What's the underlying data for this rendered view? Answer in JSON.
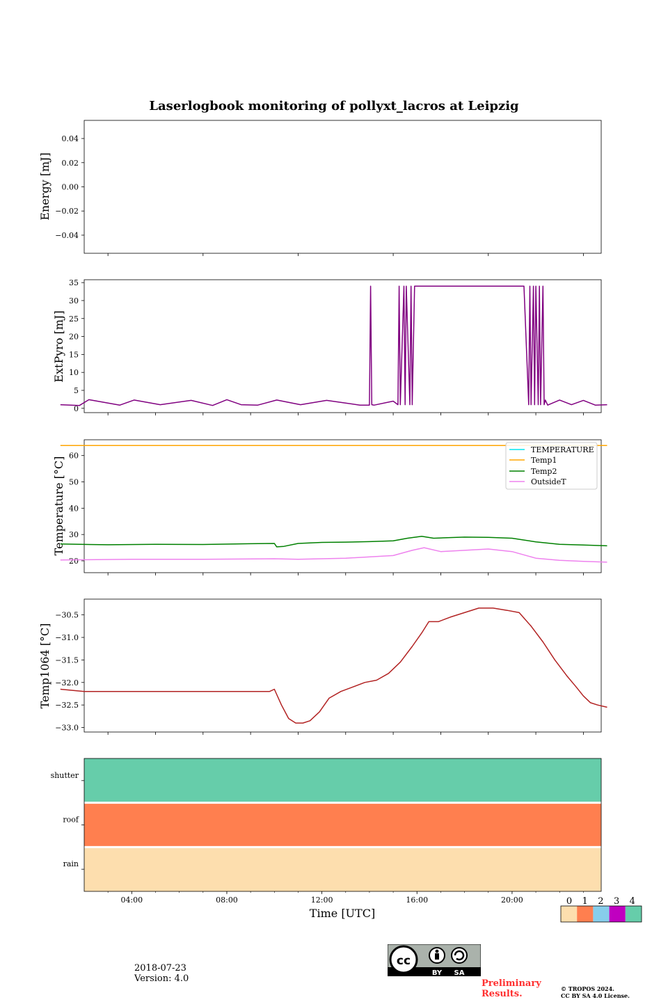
{
  "title": "Laserlogbook monitoring of pollyxt_lacros at Leipzig",
  "date": "2018-07-23",
  "version": "Version: 4.0",
  "preliminary": [
    "Preliminary",
    "Results."
  ],
  "copyright": [
    "© TROPOS 2024.",
    "CC BY SA 4.0 License."
  ],
  "cc_badge": {
    "left": "BY",
    "right": "SA"
  },
  "colors": {
    "extpyro": "#800080",
    "temperature": "#00e5ee",
    "temp1": "#ffa500",
    "temp2": "#008000",
    "outsidet": "#ee82ee",
    "temp1064": "#b22222",
    "status0": "#fddeae",
    "status1": "#ff7f4f",
    "status2": "#87ceeb",
    "status3": "#c000c0",
    "status4": "#66cdaa",
    "prelim": "#ff3030"
  },
  "chart_data": [
    {
      "type": "line",
      "ylabel": "Energy [mJ]",
      "ylim": [
        -0.055,
        0.055
      ],
      "yticks": [
        "0.04",
        "0.02",
        "0.00",
        "−0.02",
        "−0.04"
      ],
      "ytick_values": [
        0.04,
        0.02,
        0.0,
        -0.02,
        -0.04
      ],
      "series": []
    },
    {
      "type": "line",
      "ylabel": "ExtPyro [mJ]",
      "ylim": [
        -1.2,
        35.8
      ],
      "yticks": [
        "35",
        "30",
        "25",
        "20",
        "15",
        "10",
        "5",
        "0"
      ],
      "ytick_values": [
        35,
        30,
        25,
        20,
        15,
        10,
        5,
        0
      ],
      "x_hours": [
        0.0,
        0.8,
        1.2,
        2.5,
        3.1,
        4.2,
        5.5,
        6.4,
        7.0,
        7.6,
        8.3,
        9.1,
        10.1,
        11.2,
        12.6,
        13.0,
        13.05,
        13.1,
        13.2,
        14.0,
        14.2,
        14.25,
        14.3,
        14.45,
        14.5,
        14.55,
        14.7,
        14.75,
        14.8,
        14.9,
        15.0,
        15.1,
        16.5,
        18.0,
        19.5,
        19.7,
        19.75,
        19.8,
        19.9,
        19.95,
        20.0,
        20.1,
        20.15,
        20.2,
        20.3,
        20.35,
        20.4,
        20.5,
        21.0,
        21.5,
        22.0,
        22.5,
        23.0
      ],
      "y_values": [
        1.0,
        0.8,
        2.4,
        0.9,
        2.3,
        1.0,
        2.2,
        0.8,
        2.4,
        1.0,
        0.9,
        2.3,
        1.0,
        2.2,
        0.9,
        0.9,
        34.0,
        1.0,
        0.9,
        2.0,
        1.0,
        34.0,
        1.0,
        34.0,
        1.0,
        34.0,
        1.0,
        34.0,
        1.0,
        34.0,
        34.0,
        34.0,
        34.0,
        34.0,
        34.0,
        1.0,
        34.0,
        1.0,
        34.0,
        1.0,
        34.0,
        1.0,
        34.0,
        1.0,
        34.0,
        1.0,
        2.3,
        0.9,
        2.3,
        1.0,
        2.2,
        0.9,
        1.0
      ],
      "series_name": "ExtPyro"
    },
    {
      "type": "line",
      "ylabel": "Temperature [°C]",
      "ylim": [
        15.5,
        66.0
      ],
      "yticks": [
        "60",
        "50",
        "40",
        "30",
        "20"
      ],
      "ytick_values": [
        60,
        50,
        40,
        30,
        20
      ],
      "legend_placement": "top-right",
      "series": [
        {
          "name": "TEMPERATURE",
          "x_hours": [],
          "values": []
        },
        {
          "name": "Temp1",
          "x_hours": [
            0,
            23
          ],
          "values": [
            63.8,
            63.8
          ]
        },
        {
          "name": "Temp2",
          "x_hours": [
            0,
            2,
            4,
            6,
            8,
            9,
            9.1,
            9.4,
            10,
            11,
            12,
            13,
            14,
            14.6,
            15.2,
            15.7,
            16,
            17,
            18,
            19,
            20,
            21,
            22,
            23
          ],
          "values": [
            26.4,
            26.1,
            26.3,
            26.2,
            26.5,
            26.6,
            25.3,
            25.5,
            26.6,
            27.0,
            27.1,
            27.3,
            27.6,
            28.6,
            29.3,
            28.6,
            28.7,
            29.0,
            28.9,
            28.6,
            27.2,
            26.3,
            26.0,
            25.7
          ]
        },
        {
          "name": "OutsideT",
          "x_hours": [
            0,
            3,
            6,
            9,
            10,
            12,
            14,
            14.8,
            15.3,
            16,
            17,
            18,
            19,
            20,
            21,
            22,
            23
          ],
          "values": [
            20.3,
            20.6,
            20.6,
            20.8,
            20.6,
            21.0,
            22.0,
            24.0,
            25.0,
            23.5,
            24.0,
            24.5,
            23.5,
            21.0,
            20.2,
            19.8,
            19.5
          ]
        }
      ]
    },
    {
      "type": "line",
      "ylabel": "Temp1064 [°C]",
      "ylim": [
        -33.1,
        -30.15
      ],
      "yticks": [
        "−30.5",
        "−31.0",
        "−31.5",
        "−32.0",
        "−32.5",
        "−33.0"
      ],
      "ytick_values": [
        -30.5,
        -31.0,
        -31.5,
        -32.0,
        -32.5,
        -33.0
      ],
      "x_hours": [
        0.0,
        1.0,
        2.0,
        3.0,
        4.0,
        5.0,
        6.0,
        7.0,
        8.0,
        8.8,
        9.0,
        9.3,
        9.6,
        9.9,
        10.2,
        10.5,
        10.9,
        11.3,
        11.8,
        12.3,
        12.8,
        13.3,
        13.8,
        14.3,
        14.8,
        15.2,
        15.5,
        15.9,
        16.4,
        17.0,
        17.6,
        18.2,
        18.8,
        19.3,
        19.8,
        20.3,
        20.8,
        21.3,
        21.7,
        22.0,
        22.3,
        22.6,
        23.0
      ],
      "values": [
        -32.15,
        -32.2,
        -32.2,
        -32.2,
        -32.2,
        -32.2,
        -32.2,
        -32.2,
        -32.2,
        -32.2,
        -32.15,
        -32.5,
        -32.8,
        -32.9,
        -32.9,
        -32.85,
        -32.65,
        -32.35,
        -32.2,
        -32.1,
        -32.0,
        -31.95,
        -31.8,
        -31.55,
        -31.2,
        -30.9,
        -30.65,
        -30.65,
        -30.55,
        -30.45,
        -30.35,
        -30.35,
        -30.4,
        -30.45,
        -30.75,
        -31.1,
        -31.5,
        -31.85,
        -32.1,
        -32.3,
        -32.45,
        -32.5,
        -32.55
      ]
    },
    {
      "type": "heatmap",
      "rows": [
        "shutter",
        "roof",
        "rain"
      ],
      "row_values": [
        4,
        1,
        0
      ],
      "colorbar_ticks": [
        "0",
        "1",
        "2",
        "3",
        "4"
      ],
      "xlabel": "Time [UTC]",
      "xtick_labels": [
        "04:00",
        "08:00",
        "12:00",
        "16:00",
        "20:00"
      ],
      "xtick_hours": [
        4,
        8,
        12,
        16,
        20
      ]
    }
  ]
}
